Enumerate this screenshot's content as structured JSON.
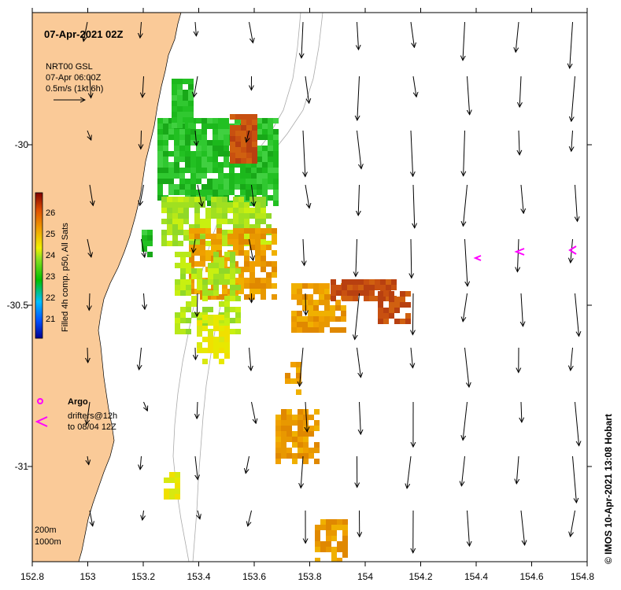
{
  "map": {
    "title": "07-Apr-2021 02Z",
    "current_info": {
      "line1": "NRT00 GSL",
      "line2": "07-Apr 06:00Z",
      "line3": "0.5m/s (1kt 6h)"
    },
    "colorbar": {
      "label": "Filled 4h comp. p50, All Sats",
      "ticks": [
        "26",
        "25",
        "24",
        "23",
        "22",
        "21"
      ],
      "range": [
        20.7,
        26.7
      ]
    },
    "x_axis_ticks": [
      "152.8",
      "153",
      "153.2",
      "153.4",
      "153.6",
      "153.8",
      "154",
      "154.2",
      "154.4",
      "154.6",
      "154.8"
    ],
    "y_axis_ticks": [
      "-30",
      "-30.5",
      "-31"
    ],
    "legend": {
      "argo": "Argo",
      "drifters_line1": "drifters@12h",
      "drifters_line2": "to 08/04 12Z"
    },
    "isobaths": [
      "200m",
      "1000m"
    ],
    "credit": "© IMOS 10-Apr-2021 13:08 Hobart",
    "colors": {
      "land": "#FACA98",
      "argo": "#FF00FF",
      "isobath": "#AAAAAA"
    }
  }
}
